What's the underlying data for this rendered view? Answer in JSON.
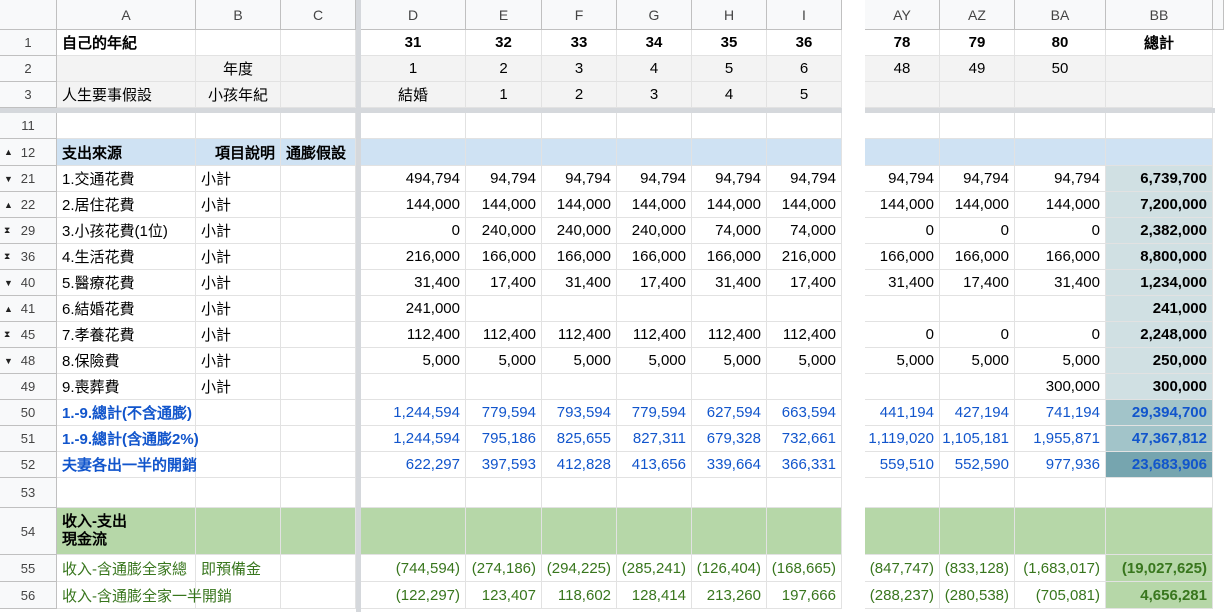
{
  "columns": [
    "A",
    "B",
    "C",
    "D",
    "E",
    "F",
    "G",
    "H",
    "I",
    "AY",
    "AZ",
    "BA",
    "BB"
  ],
  "colors": {
    "section_blue": "#cfe2f3",
    "section_green": "#b6d7a8",
    "total_light": "#d0e0e3",
    "total_mid": "#a2c4c9",
    "total_dark": "#76a5af",
    "text_blue": "#1155cc",
    "text_green": "#38761d"
  },
  "rows": [
    {
      "n": "1",
      "icon": "",
      "cells": [
        "自己的年紀",
        "",
        "",
        "31",
        "32",
        "33",
        "34",
        "35",
        "36",
        "78",
        "79",
        "80",
        "總計"
      ]
    },
    {
      "n": "2",
      "icon": "",
      "cells": [
        "",
        "年度",
        "",
        "1",
        "2",
        "3",
        "4",
        "5",
        "6",
        "48",
        "49",
        "50",
        ""
      ]
    },
    {
      "n": "3",
      "icon": "",
      "cells": [
        "人生要事假設",
        "小孩年紀",
        "",
        "結婚",
        "1",
        "2",
        "3",
        "4",
        "5",
        "",
        "",
        "",
        ""
      ]
    },
    {
      "n": "11",
      "icon": "",
      "cells": [
        "",
        "",
        "",
        "",
        "",
        "",
        "",
        "",
        "",
        "",
        "",
        "",
        ""
      ]
    },
    {
      "n": "12",
      "icon": "expand-up",
      "cells": [
        "支出來源",
        "項目說明",
        "通膨假設",
        "",
        "",
        "",
        "",
        "",
        "",
        "",
        "",
        "",
        ""
      ]
    },
    {
      "n": "21",
      "icon": "collapse-down",
      "cells": [
        "1.交通花費",
        "小計",
        "",
        "494,794",
        "94,794",
        "94,794",
        "94,794",
        "94,794",
        "94,794",
        "94,794",
        "94,794",
        "94,794",
        "6,739,700"
      ]
    },
    {
      "n": "22",
      "icon": "expand-up",
      "cells": [
        "2.居住花費",
        "小計",
        "",
        "144,000",
        "144,000",
        "144,000",
        "144,000",
        "144,000",
        "144,000",
        "144,000",
        "144,000",
        "144,000",
        "7,200,000"
      ]
    },
    {
      "n": "29",
      "icon": "expand-both",
      "cells": [
        "3.小孩花費(1位)",
        "小計",
        "",
        "0",
        "240,000",
        "240,000",
        "240,000",
        "74,000",
        "74,000",
        "0",
        "0",
        "0",
        "2,382,000"
      ]
    },
    {
      "n": "36",
      "icon": "expand-both",
      "cells": [
        "4.生活花費",
        "小計",
        "",
        "216,000",
        "166,000",
        "166,000",
        "166,000",
        "166,000",
        "216,000",
        "166,000",
        "166,000",
        "166,000",
        "8,800,000"
      ]
    },
    {
      "n": "40",
      "icon": "collapse-down",
      "cells": [
        "5.醫療花費",
        "小計",
        "",
        "31,400",
        "17,400",
        "31,400",
        "17,400",
        "31,400",
        "17,400",
        "31,400",
        "17,400",
        "31,400",
        "1,234,000"
      ]
    },
    {
      "n": "41",
      "icon": "expand-up",
      "cells": [
        "6.結婚花費",
        "小計",
        "",
        "241,000",
        "",
        "",
        "",
        "",
        "",
        "",
        "",
        "",
        "241,000"
      ]
    },
    {
      "n": "45",
      "icon": "expand-both",
      "cells": [
        "7.孝養花費",
        "小計",
        "",
        "112,400",
        "112,400",
        "112,400",
        "112,400",
        "112,400",
        "112,400",
        "0",
        "0",
        "0",
        "2,248,000"
      ]
    },
    {
      "n": "48",
      "icon": "collapse-down",
      "cells": [
        "8.保險費",
        "小計",
        "",
        "5,000",
        "5,000",
        "5,000",
        "5,000",
        "5,000",
        "5,000",
        "5,000",
        "5,000",
        "5,000",
        "250,000"
      ]
    },
    {
      "n": "49",
      "icon": "",
      "cells": [
        "9.喪葬費",
        "小計",
        "",
        "",
        "",
        "",
        "",
        "",
        "",
        "",
        "",
        "300,000",
        "300,000"
      ]
    },
    {
      "n": "50",
      "icon": "",
      "cells": [
        "1.-9.總計(不含通膨)",
        "",
        "",
        "1,244,594",
        "779,594",
        "793,594",
        "779,594",
        "627,594",
        "663,594",
        "441,194",
        "427,194",
        "741,194",
        "29,394,700"
      ]
    },
    {
      "n": "51",
      "icon": "",
      "cells": [
        "1.-9.總計(含通膨2%)",
        "",
        "",
        "1,244,594",
        "795,186",
        "825,655",
        "827,311",
        "679,328",
        "732,661",
        "1,119,020",
        "1,105,181",
        "1,955,871",
        "47,367,812"
      ]
    },
    {
      "n": "52",
      "icon": "",
      "cells": [
        "夫妻各出一半的開銷",
        "",
        "",
        "622,297",
        "397,593",
        "412,828",
        "413,656",
        "339,664",
        "366,331",
        "559,510",
        "552,590",
        "977,936",
        "23,683,906"
      ]
    },
    {
      "n": "53",
      "icon": "",
      "cells": [
        "",
        "",
        "",
        "",
        "",
        "",
        "",
        "",
        "",
        "",
        "",
        "",
        ""
      ]
    },
    {
      "n": "54",
      "icon": "",
      "cells": [
        "收入-支出\n現金流",
        "",
        "",
        "",
        "",
        "",
        "",
        "",
        "",
        "",
        "",
        "",
        ""
      ]
    },
    {
      "n": "55",
      "icon": "",
      "cells": [
        "收入-含通膨全家總",
        "即預備金",
        "",
        "(744,594)",
        "(274,186)",
        "(294,225)",
        "(285,241)",
        "(126,404)",
        "(168,665)",
        "(847,747)",
        "(833,128)",
        "(1,683,017)",
        "(19,027,625)"
      ]
    },
    {
      "n": "56",
      "icon": "",
      "cells": [
        "收入-含通膨全家一半開銷",
        "",
        "",
        "(122,297)",
        "123,407",
        "118,602",
        "128,414",
        "213,260",
        "197,666",
        "(288,237)",
        "(280,538)",
        "(705,081)",
        "4,656,281"
      ]
    }
  ]
}
